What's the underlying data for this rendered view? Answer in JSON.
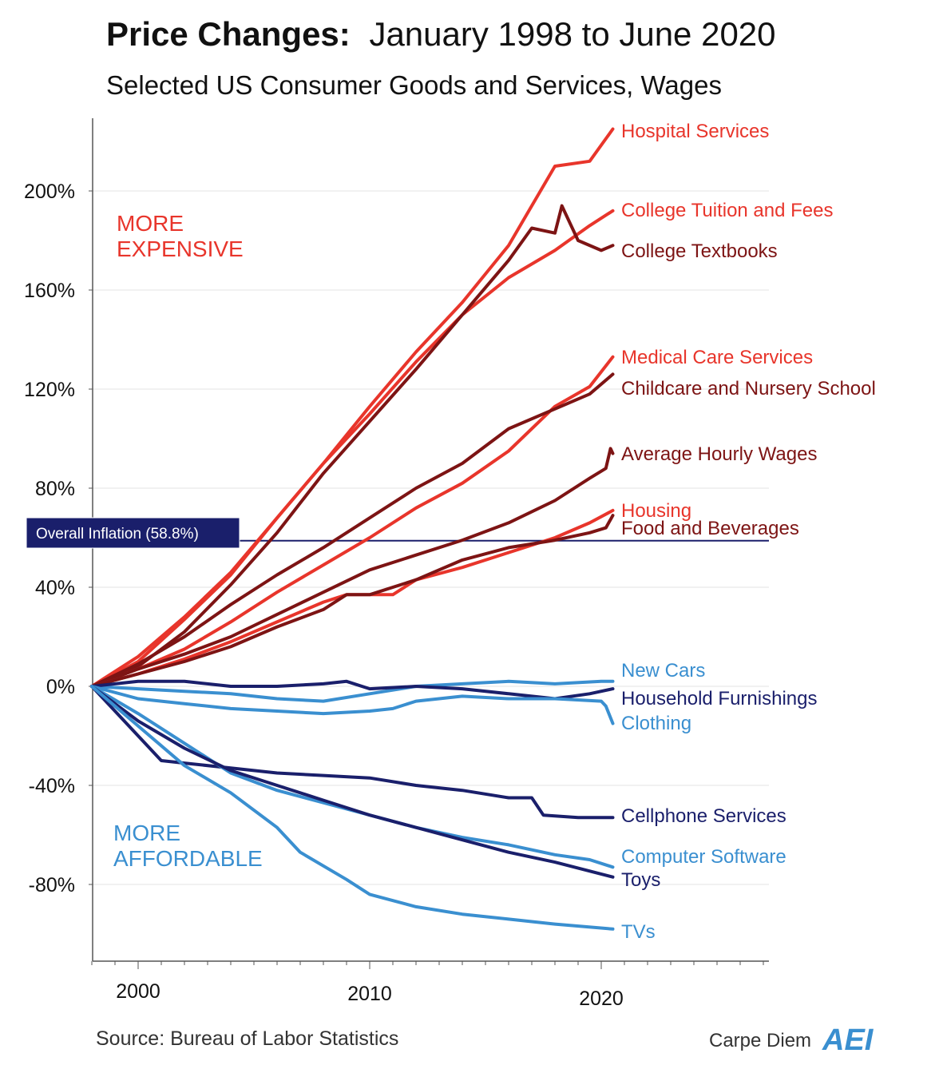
{
  "chart_data": {
    "type": "line",
    "title": "Price Changes: January 1998 to June 2020",
    "title_bold": "Price Changes:",
    "title_rest": "January 1998 to June 2020",
    "subtitle": "Selected US Consumer Goods and Services, Wages",
    "xlabel": "",
    "ylabel": "",
    "xlim": [
      1998,
      2027.5
    ],
    "ylim": [
      -112,
      230
    ],
    "x_ticks": [
      2000,
      2010,
      2020
    ],
    "y_ticks": [
      {
        "value": 200,
        "label": "200%"
      },
      {
        "value": 160,
        "label": "160%"
      },
      {
        "value": 120,
        "label": "120%"
      },
      {
        "value": 80,
        "label": "80%"
      },
      {
        "value": 40,
        "label": "40%"
      },
      {
        "value": 0,
        "label": "0%"
      },
      {
        "value": -40,
        "label": "-40%"
      },
      {
        "value": -80,
        "label": "-80%"
      }
    ],
    "grid": true,
    "reference_line": {
      "value": 58.8,
      "label": "Overall Inflation (58.8%)",
      "color": "#1a1f6b"
    },
    "region_labels": [
      {
        "lines": [
          "MORE",
          "EXPENSIVE"
        ],
        "color": "#e8352b"
      },
      {
        "lines": [
          "MORE",
          "AFFORDABLE"
        ],
        "color": "#3a8fd0"
      }
    ],
    "colors": {
      "red": "#e8352b",
      "dark_red": "#7d1414",
      "navy": "#1a1f6b",
      "light_blue": "#3a8fd0"
    },
    "series": [
      {
        "name": "Hospital Services",
        "color": "#e8352b",
        "points": [
          [
            1998,
            0
          ],
          [
            2000,
            10
          ],
          [
            2002,
            27
          ],
          [
            2004,
            45
          ],
          [
            2006,
            68
          ],
          [
            2008,
            90
          ],
          [
            2010,
            113
          ],
          [
            2012,
            135
          ],
          [
            2014,
            155
          ],
          [
            2016,
            178
          ],
          [
            2018,
            210
          ],
          [
            2019.5,
            212
          ],
          [
            2020.5,
            225
          ]
        ]
      },
      {
        "name": "College Tuition and Fees",
        "color": "#e8352b",
        "points": [
          [
            1998,
            0
          ],
          [
            2000,
            12
          ],
          [
            2002,
            28
          ],
          [
            2004,
            46
          ],
          [
            2006,
            68
          ],
          [
            2008,
            90
          ],
          [
            2010,
            110
          ],
          [
            2012,
            131
          ],
          [
            2014,
            150
          ],
          [
            2016,
            165
          ],
          [
            2018,
            176
          ],
          [
            2019.5,
            186
          ],
          [
            2020.5,
            192
          ]
        ]
      },
      {
        "name": "College Textbooks",
        "color": "#7d1414",
        "points": [
          [
            1998,
            0
          ],
          [
            2000,
            8
          ],
          [
            2002,
            22
          ],
          [
            2004,
            41
          ],
          [
            2006,
            62
          ],
          [
            2008,
            86
          ],
          [
            2010,
            107
          ],
          [
            2012,
            128
          ],
          [
            2014,
            150
          ],
          [
            2016,
            172
          ],
          [
            2017,
            185
          ],
          [
            2018,
            183
          ],
          [
            2018.3,
            194
          ],
          [
            2019,
            180
          ],
          [
            2020,
            176
          ],
          [
            2020.5,
            178
          ]
        ]
      },
      {
        "name": "Medical Care Services",
        "color": "#e8352b",
        "points": [
          [
            1998,
            0
          ],
          [
            2000,
            7
          ],
          [
            2002,
            15
          ],
          [
            2004,
            26
          ],
          [
            2006,
            38
          ],
          [
            2008,
            49
          ],
          [
            2010,
            60
          ],
          [
            2012,
            72
          ],
          [
            2014,
            82
          ],
          [
            2016,
            95
          ],
          [
            2018,
            113
          ],
          [
            2019.5,
            121
          ],
          [
            2020.5,
            133
          ]
        ]
      },
      {
        "name": "Childcare and Nursery School",
        "color": "#7d1414",
        "points": [
          [
            1998,
            0
          ],
          [
            2000,
            9
          ],
          [
            2002,
            20
          ],
          [
            2004,
            33
          ],
          [
            2006,
            45
          ],
          [
            2008,
            56
          ],
          [
            2010,
            68
          ],
          [
            2012,
            80
          ],
          [
            2014,
            90
          ],
          [
            2016,
            104
          ],
          [
            2018,
            112
          ],
          [
            2019.5,
            118
          ],
          [
            2020.5,
            126
          ]
        ]
      },
      {
        "name": "Average Hourly Wages",
        "color": "#7d1414",
        "points": [
          [
            1998,
            0
          ],
          [
            2000,
            7
          ],
          [
            2002,
            13
          ],
          [
            2004,
            20
          ],
          [
            2006,
            29
          ],
          [
            2008,
            38
          ],
          [
            2010,
            47
          ],
          [
            2012,
            53
          ],
          [
            2014,
            59
          ],
          [
            2016,
            66
          ],
          [
            2018,
            75
          ],
          [
            2019.5,
            84
          ],
          [
            2020.2,
            88
          ],
          [
            2020.4,
            96
          ],
          [
            2020.5,
            94
          ]
        ]
      },
      {
        "name": "Housing",
        "color": "#e8352b",
        "points": [
          [
            1998,
            0
          ],
          [
            2000,
            5
          ],
          [
            2002,
            11
          ],
          [
            2004,
            18
          ],
          [
            2006,
            26
          ],
          [
            2008,
            34
          ],
          [
            2009,
            37
          ],
          [
            2011,
            37
          ],
          [
            2012,
            43
          ],
          [
            2014,
            48
          ],
          [
            2016,
            54
          ],
          [
            2018,
            60
          ],
          [
            2019.5,
            66
          ],
          [
            2020.5,
            71
          ]
        ]
      },
      {
        "name": "Food and Beverages",
        "color": "#7d1414",
        "points": [
          [
            1998,
            0
          ],
          [
            2000,
            5
          ],
          [
            2002,
            10
          ],
          [
            2004,
            16
          ],
          [
            2006,
            24
          ],
          [
            2008,
            31
          ],
          [
            2009,
            37
          ],
          [
            2010,
            37
          ],
          [
            2012,
            43
          ],
          [
            2014,
            51
          ],
          [
            2016,
            56
          ],
          [
            2018,
            59
          ],
          [
            2019.5,
            62
          ],
          [
            2020.2,
            64
          ],
          [
            2020.5,
            69
          ]
        ]
      },
      {
        "name": "New Cars",
        "color": "#3a8fd0",
        "points": [
          [
            1998,
            0
          ],
          [
            2000,
            -1
          ],
          [
            2002,
            -2
          ],
          [
            2004,
            -3
          ],
          [
            2006,
            -5
          ],
          [
            2008,
            -6
          ],
          [
            2010,
            -3
          ],
          [
            2012,
            0
          ],
          [
            2014,
            1
          ],
          [
            2016,
            2
          ],
          [
            2018,
            1
          ],
          [
            2020,
            2
          ],
          [
            2020.5,
            2
          ]
        ]
      },
      {
        "name": "Household Furnishings",
        "color": "#1a1f6b",
        "points": [
          [
            1998,
            0
          ],
          [
            2000,
            2
          ],
          [
            2002,
            2
          ],
          [
            2004,
            0
          ],
          [
            2006,
            0
          ],
          [
            2008,
            1
          ],
          [
            2009,
            2
          ],
          [
            2010,
            -1
          ],
          [
            2012,
            0
          ],
          [
            2014,
            -1
          ],
          [
            2016,
            -3
          ],
          [
            2018,
            -5
          ],
          [
            2019.5,
            -3
          ],
          [
            2020.5,
            -1
          ]
        ]
      },
      {
        "name": "Clothing",
        "color": "#3a8fd0",
        "points": [
          [
            1998,
            0
          ],
          [
            2000,
            -5
          ],
          [
            2002,
            -7
          ],
          [
            2004,
            -9
          ],
          [
            2006,
            -10
          ],
          [
            2008,
            -11
          ],
          [
            2010,
            -10
          ],
          [
            2011,
            -9
          ],
          [
            2012,
            -6
          ],
          [
            2014,
            -4
          ],
          [
            2016,
            -5
          ],
          [
            2018,
            -5
          ],
          [
            2020,
            -6
          ],
          [
            2020.2,
            -8
          ],
          [
            2020.5,
            -15
          ]
        ]
      },
      {
        "name": "Cellphone Services",
        "color": "#1a1f6b",
        "points": [
          [
            1998,
            0
          ],
          [
            1999,
            -10
          ],
          [
            2000,
            -20
          ],
          [
            2001,
            -30
          ],
          [
            2002,
            -31
          ],
          [
            2004,
            -33
          ],
          [
            2006,
            -35
          ],
          [
            2008,
            -36
          ],
          [
            2010,
            -37
          ],
          [
            2012,
            -40
          ],
          [
            2014,
            -42
          ],
          [
            2016,
            -45
          ],
          [
            2017,
            -45
          ],
          [
            2017.5,
            -52
          ],
          [
            2019,
            -53
          ],
          [
            2020.5,
            -53
          ]
        ]
      },
      {
        "name": "Computer Software",
        "color": "#3a8fd0",
        "points": [
          [
            1998,
            0
          ],
          [
            2000,
            -11
          ],
          [
            2002,
            -23
          ],
          [
            2004,
            -35
          ],
          [
            2006,
            -42
          ],
          [
            2008,
            -47
          ],
          [
            2010,
            -52
          ],
          [
            2012,
            -57
          ],
          [
            2014,
            -61
          ],
          [
            2016,
            -64
          ],
          [
            2018,
            -68
          ],
          [
            2019.5,
            -70
          ],
          [
            2020.5,
            -73
          ]
        ]
      },
      {
        "name": "Toys",
        "color": "#1a1f6b",
        "points": [
          [
            1998,
            0
          ],
          [
            2000,
            -14
          ],
          [
            2002,
            -25
          ],
          [
            2004,
            -34
          ],
          [
            2006,
            -40
          ],
          [
            2008,
            -46
          ],
          [
            2010,
            -52
          ],
          [
            2012,
            -57
          ],
          [
            2014,
            -62
          ],
          [
            2016,
            -67
          ],
          [
            2018,
            -71
          ],
          [
            2020.5,
            -77
          ]
        ]
      },
      {
        "name": "TVs",
        "color": "#3a8fd0",
        "points": [
          [
            1998,
            0
          ],
          [
            2000,
            -16
          ],
          [
            2002,
            -32
          ],
          [
            2004,
            -43
          ],
          [
            2006,
            -57
          ],
          [
            2007,
            -67
          ],
          [
            2009,
            -78
          ],
          [
            2010,
            -84
          ],
          [
            2012,
            -89
          ],
          [
            2014,
            -92
          ],
          [
            2016,
            -94
          ],
          [
            2018,
            -96
          ],
          [
            2020.5,
            -98
          ]
        ]
      }
    ]
  },
  "footer": {
    "source": "Source: Bureau of Labor Statistics",
    "brand": "Carpe Diem",
    "logo": "AEI"
  }
}
